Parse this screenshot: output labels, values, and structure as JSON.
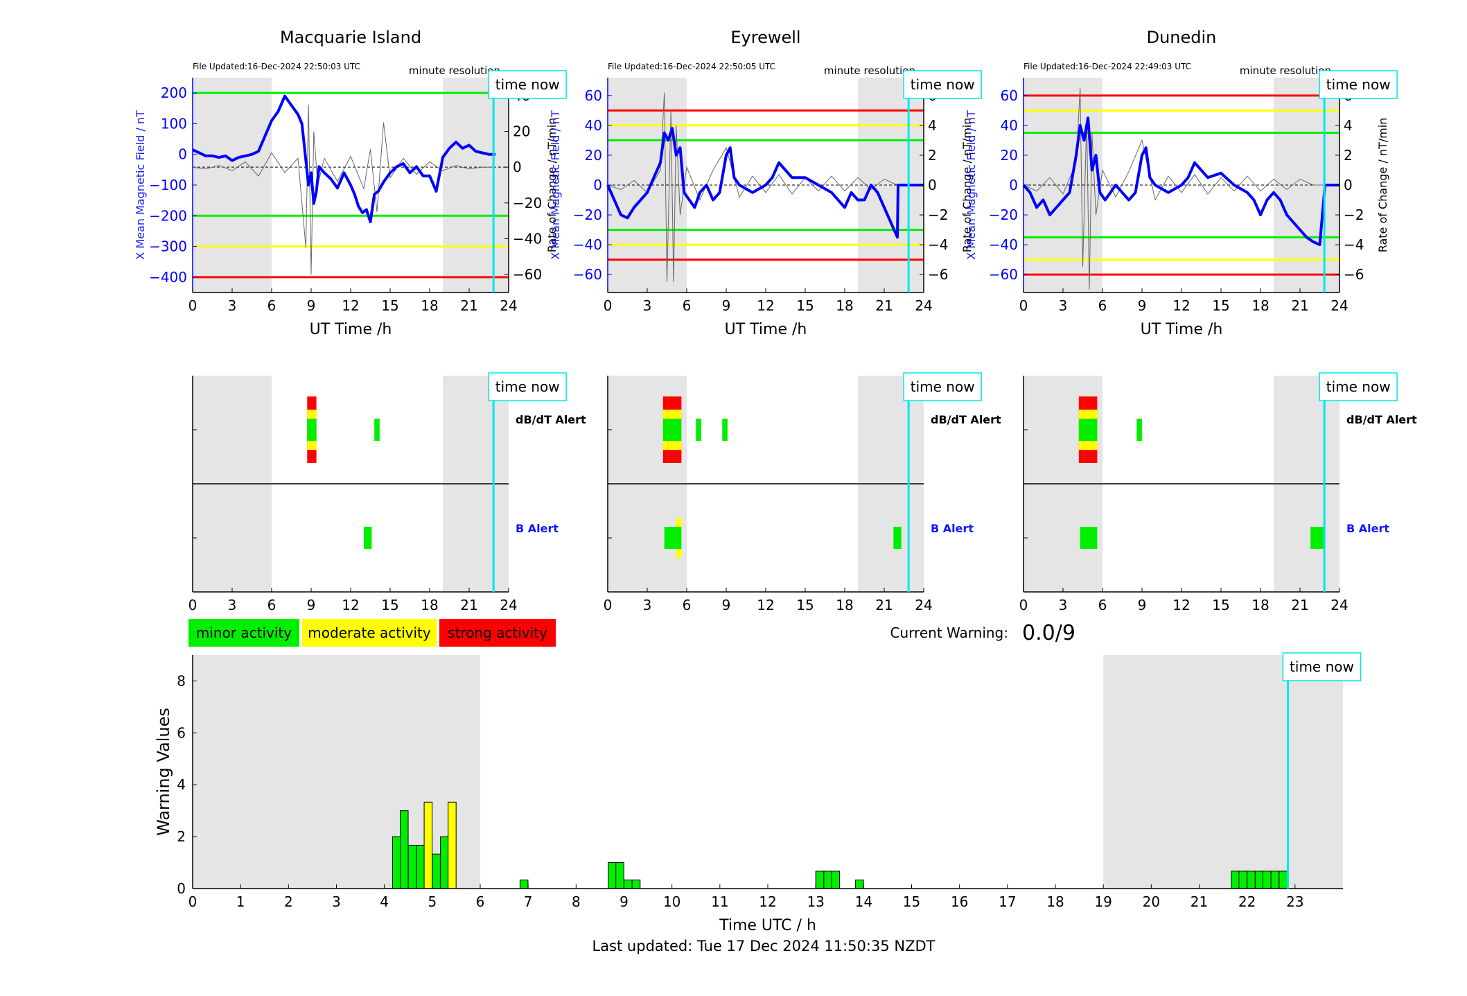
{
  "footer": {
    "last_updated": "Last updated: Tue 17 Dec 2024 11:50:35 NZDT"
  },
  "colors": {
    "minor": "#00ee00",
    "moderate": "#ffff00",
    "strong": "#ff0000",
    "field": "#0000ff",
    "time_now": "#00e5ee",
    "night": "#e5e5e5",
    "label_blue": "#1515ff"
  },
  "legend": [
    {
      "key": "minor",
      "label": "minor activity"
    },
    {
      "key": "moderate",
      "label": "moderate activity"
    },
    {
      "key": "strong",
      "label": "strong activity"
    }
  ],
  "current_warning": {
    "label": "Current Warning:",
    "value": "0.0/9"
  },
  "time_now_label": "time now",
  "time_now_hour": 22.85,
  "chart_data": [
    {
      "type": "line",
      "title": "Macquarie Island",
      "file_updated": "File Updated:16-Dec-2024 22:50:03 UTC",
      "resolution": "minute resolution",
      "xlabel": "UT Time /h",
      "ylabel_left": "X Mean Magnetic Field / nT",
      "ylabel_right": "Rate of Change / nT/min",
      "xlim": [
        0,
        24
      ],
      "xticks": [
        0,
        3,
        6,
        9,
        12,
        15,
        18,
        21,
        24
      ],
      "ylim_left": [
        -450,
        250
      ],
      "yticks_left": [
        -400,
        -300,
        -200,
        -100,
        0,
        100,
        200
      ],
      "ylim_right": [
        -70,
        50
      ],
      "yticks_right": [
        -60,
        -40,
        -20,
        0,
        20,
        40
      ],
      "night_shading": [
        [
          0,
          6
        ],
        [
          19,
          24
        ]
      ],
      "thresholds": [
        {
          "value": 200,
          "color": "minor"
        },
        {
          "value": -200,
          "color": "minor"
        },
        {
          "value": -300,
          "color": "moderate"
        },
        {
          "value": -400,
          "color": "strong"
        }
      ],
      "field_series": {
        "x": [
          0,
          0.5,
          1,
          1.5,
          2,
          2.5,
          3,
          3.5,
          4,
          4.5,
          5,
          5.5,
          6,
          6.5,
          7,
          7.5,
          8,
          8.3,
          8.6,
          8.8,
          9,
          9.2,
          9.4,
          9.6,
          10,
          10.5,
          11,
          11.5,
          12,
          12.3,
          12.6,
          12.9,
          13.2,
          13.5,
          13.8,
          14.1,
          14.5,
          15,
          15.5,
          16,
          16.5,
          17,
          17.5,
          18,
          18.5,
          19,
          19.5,
          20,
          20.5,
          21,
          21.5,
          22,
          22.5,
          23
        ],
        "y": [
          15,
          5,
          -5,
          -5,
          -10,
          -5,
          -20,
          -10,
          -5,
          0,
          10,
          60,
          110,
          140,
          190,
          160,
          130,
          100,
          -20,
          -100,
          -60,
          -160,
          -120,
          -40,
          -60,
          -80,
          -110,
          -60,
          -100,
          -130,
          -170,
          -190,
          -180,
          -220,
          -130,
          -120,
          -90,
          -60,
          -40,
          -30,
          -60,
          -40,
          -70,
          -70,
          -120,
          -10,
          20,
          40,
          20,
          30,
          10,
          5,
          0,
          0
        ]
      },
      "rate_series": {
        "x": [
          0,
          1,
          2,
          3,
          4,
          5,
          6,
          7,
          8,
          8.6,
          8.8,
          9,
          9.2,
          9.5,
          10,
          11,
          12,
          13,
          13.5,
          14,
          14.5,
          15,
          16,
          17,
          18,
          19,
          20,
          21,
          22,
          23
        ],
        "y": [
          0,
          -1,
          1,
          -2,
          3,
          -5,
          8,
          -3,
          5,
          -45,
          35,
          -60,
          20,
          -10,
          5,
          -8,
          6,
          -12,
          10,
          -25,
          25,
          -6,
          5,
          -4,
          3,
          -2,
          1,
          -1,
          0,
          0
        ]
      }
    },
    {
      "type": "line",
      "title": "Eyrewell",
      "file_updated": "File Updated:16-Dec-2024 22:50:05 UTC",
      "resolution": "minute resolution",
      "xlabel": "UT Time /h",
      "ylabel_left": "X Mean Magnetic Field / nT",
      "ylabel_right": "Rate of Change / nT/min",
      "xlim": [
        0,
        24
      ],
      "xticks": [
        0,
        3,
        6,
        9,
        12,
        15,
        18,
        21,
        24
      ],
      "ylim_left": [
        -72,
        72
      ],
      "yticks_left": [
        -60,
        -40,
        -20,
        0,
        20,
        40,
        60
      ],
      "ylim_right": [
        -7.2,
        7.2
      ],
      "yticks_right": [
        -6,
        -4,
        -2,
        0,
        2,
        4,
        6
      ],
      "night_shading": [
        [
          0,
          6
        ],
        [
          19,
          24
        ]
      ],
      "thresholds": [
        {
          "value": 50,
          "color": "strong"
        },
        {
          "value": 40,
          "color": "moderate"
        },
        {
          "value": 30,
          "color": "minor"
        },
        {
          "value": -30,
          "color": "minor"
        },
        {
          "value": -40,
          "color": "moderate"
        },
        {
          "value": -50,
          "color": "strong"
        }
      ],
      "field_series": {
        "x": [
          0,
          0.5,
          1,
          1.5,
          2,
          2.5,
          3,
          3.5,
          4,
          4.3,
          4.6,
          4.9,
          5.2,
          5.5,
          5.8,
          6.2,
          6.6,
          7,
          7.5,
          8,
          8.5,
          9,
          9.3,
          9.6,
          10,
          11,
          12,
          12.5,
          13,
          13.5,
          14,
          15,
          16,
          17,
          17.5,
          18,
          18.5,
          19,
          19.5,
          20,
          20.5,
          21,
          21.5,
          22,
          22.05,
          22.5,
          23,
          24
        ],
        "y": [
          0,
          -10,
          -20,
          -22,
          -15,
          -10,
          -5,
          5,
          15,
          35,
          30,
          38,
          20,
          25,
          -5,
          -10,
          -15,
          -5,
          0,
          -10,
          -5,
          20,
          25,
          5,
          0,
          -5,
          0,
          5,
          15,
          10,
          5,
          5,
          0,
          -5,
          -10,
          -15,
          -5,
          -10,
          -10,
          0,
          -5,
          -15,
          -25,
          -35,
          0,
          0,
          0,
          0
        ]
      },
      "rate_series": {
        "x": [
          0,
          1,
          2,
          3,
          4,
          4.3,
          4.5,
          4.8,
          5,
          5.2,
          5.5,
          6,
          7,
          8,
          9,
          10,
          11,
          12,
          13,
          14,
          15,
          16,
          17,
          18,
          19,
          20,
          21,
          22,
          23
        ],
        "y": [
          0,
          -0.3,
          0.3,
          -0.5,
          1,
          6.2,
          -6.5,
          5,
          -6.5,
          4,
          -2,
          1.2,
          -1,
          1,
          2.5,
          -0.8,
          0.6,
          -0.5,
          0.7,
          -0.6,
          0.5,
          -0.4,
          0.6,
          -0.4,
          0.5,
          -0.3,
          0.4,
          0,
          0
        ]
      }
    },
    {
      "type": "line",
      "title": "Dunedin",
      "file_updated": "File Updated:16-Dec-2024 22:49:03 UTC",
      "resolution": "minute resolution",
      "xlabel": "UT Time /h",
      "ylabel_left": "X Mean Magnetic Field / nT",
      "ylabel_right": "Rate of Change / nT/min",
      "xlim": [
        0,
        24
      ],
      "xticks": [
        0,
        3,
        6,
        9,
        12,
        15,
        18,
        21,
        24
      ],
      "ylim_left": [
        -72,
        72
      ],
      "yticks_left": [
        -60,
        -40,
        -20,
        0,
        20,
        40,
        60
      ],
      "ylim_right": [
        -7.2,
        7.2
      ],
      "yticks_right": [
        -6,
        -4,
        -2,
        0,
        2,
        4,
        6
      ],
      "night_shading": [
        [
          0,
          6
        ],
        [
          19,
          24
        ]
      ],
      "thresholds": [
        {
          "value": 60,
          "color": "strong"
        },
        {
          "value": 50,
          "color": "moderate"
        },
        {
          "value": 35,
          "color": "minor"
        },
        {
          "value": -35,
          "color": "minor"
        },
        {
          "value": -50,
          "color": "moderate"
        },
        {
          "value": -60,
          "color": "strong"
        }
      ],
      "field_series": {
        "x": [
          0,
          0.5,
          1,
          1.5,
          2,
          2.5,
          3,
          3.5,
          4,
          4.3,
          4.6,
          4.9,
          5.2,
          5.5,
          5.8,
          6.2,
          6.6,
          7,
          7.5,
          8,
          8.5,
          9,
          9.3,
          9.6,
          10,
          11,
          12,
          12.5,
          13,
          13.5,
          14,
          15,
          16,
          17,
          17.5,
          18,
          18.5,
          19,
          19.5,
          20,
          20.5,
          21,
          21.5,
          22,
          22.5,
          22.9,
          23,
          24
        ],
        "y": [
          0,
          -5,
          -15,
          -10,
          -20,
          -15,
          -10,
          -5,
          20,
          40,
          30,
          45,
          10,
          20,
          -5,
          -10,
          -5,
          0,
          -5,
          -10,
          -5,
          20,
          25,
          5,
          0,
          -5,
          0,
          5,
          15,
          10,
          5,
          8,
          0,
          -5,
          -10,
          -20,
          -10,
          -5,
          -10,
          -20,
          -25,
          -30,
          -35,
          -38,
          -40,
          0,
          0,
          0
        ]
      },
      "rate_series": {
        "x": [
          0,
          1,
          2,
          3,
          4,
          4.3,
          4.5,
          4.8,
          5,
          5.2,
          5.5,
          6,
          7,
          8,
          9,
          10,
          11,
          12,
          13,
          14,
          15,
          16,
          17,
          18,
          19,
          20,
          21,
          22,
          23
        ],
        "y": [
          0,
          -0.4,
          0.5,
          -0.6,
          1.5,
          6.5,
          -5.5,
          4.5,
          -7,
          3.5,
          -2,
          1,
          -0.8,
          0.9,
          3,
          -1,
          0.6,
          -0.5,
          0.7,
          -0.6,
          0.5,
          -0.4,
          0.6,
          -0.4,
          0.4,
          -0.3,
          0.4,
          0,
          0
        ]
      }
    },
    {
      "type": "bar",
      "title": "",
      "xlabel": "Time UTC / h",
      "ylabel": "Warning Values",
      "xlim": [
        0,
        24
      ],
      "xticks": [
        0,
        1,
        2,
        3,
        4,
        5,
        6,
        7,
        8,
        9,
        10,
        11,
        12,
        13,
        14,
        15,
        16,
        17,
        18,
        19,
        20,
        21,
        22,
        23
      ],
      "ylim": [
        0,
        9
      ],
      "yticks": [
        0,
        2,
        4,
        6,
        8
      ],
      "night_shading": [
        [
          0,
          6
        ],
        [
          19,
          24
        ]
      ],
      "bar_width": 0.1667,
      "bars": [
        {
          "x": 4.17,
          "value": 2.0,
          "level": "minor"
        },
        {
          "x": 4.33,
          "value": 3.0,
          "level": "minor"
        },
        {
          "x": 4.5,
          "value": 1.67,
          "level": "minor"
        },
        {
          "x": 4.67,
          "value": 1.67,
          "level": "minor"
        },
        {
          "x": 4.83,
          "value": 3.33,
          "level": "moderate"
        },
        {
          "x": 5.0,
          "value": 1.33,
          "level": "minor"
        },
        {
          "x": 5.17,
          "value": 2.0,
          "level": "minor"
        },
        {
          "x": 5.33,
          "value": 3.33,
          "level": "moderate"
        },
        {
          "x": 6.83,
          "value": 0.33,
          "level": "minor"
        },
        {
          "x": 8.67,
          "value": 1.0,
          "level": "minor"
        },
        {
          "x": 8.83,
          "value": 1.0,
          "level": "minor"
        },
        {
          "x": 9.0,
          "value": 0.33,
          "level": "minor"
        },
        {
          "x": 9.17,
          "value": 0.33,
          "level": "minor"
        },
        {
          "x": 13.0,
          "value": 0.67,
          "level": "minor"
        },
        {
          "x": 13.17,
          "value": 0.67,
          "level": "minor"
        },
        {
          "x": 13.33,
          "value": 0.67,
          "level": "minor"
        },
        {
          "x": 13.83,
          "value": 0.33,
          "level": "minor"
        },
        {
          "x": 21.67,
          "value": 0.67,
          "level": "minor"
        },
        {
          "x": 21.83,
          "value": 0.67,
          "level": "minor"
        },
        {
          "x": 22.0,
          "value": 0.67,
          "level": "minor"
        },
        {
          "x": 22.17,
          "value": 0.67,
          "level": "minor"
        },
        {
          "x": 22.33,
          "value": 0.67,
          "level": "minor"
        },
        {
          "x": 22.5,
          "value": 0.67,
          "level": "minor"
        },
        {
          "x": 22.67,
          "value": 0.67,
          "level": "minor"
        }
      ]
    }
  ],
  "alerts": [
    {
      "station": "Macquarie Island",
      "xticks": [
        0,
        3,
        6,
        9,
        12,
        15,
        18,
        21,
        24
      ],
      "dbdt_label": "dB/dT Alert",
      "b_label": "B Alert",
      "dbdt": [
        {
          "start": 8.7,
          "end": 9.4,
          "levels": [
            "minor",
            "moderate",
            "strong"
          ]
        },
        {
          "start": 13.8,
          "end": 14.2,
          "levels": [
            "minor"
          ]
        }
      ],
      "b": [
        {
          "start": 13.0,
          "end": 13.6,
          "levels": [
            "minor"
          ]
        }
      ]
    },
    {
      "station": "Eyrewell",
      "xticks": [
        0,
        3,
        6,
        9,
        12,
        15,
        18,
        21,
        24
      ],
      "dbdt_label": "dB/dT Alert",
      "b_label": "B Alert",
      "dbdt": [
        {
          "start": 4.2,
          "end": 4.6,
          "levels": [
            "minor",
            "moderate",
            "strong"
          ]
        },
        {
          "start": 4.6,
          "end": 5.0,
          "levels": [
            "minor",
            "moderate",
            "strong"
          ]
        },
        {
          "start": 5.0,
          "end": 5.6,
          "levels": [
            "minor",
            "moderate",
            "strong"
          ]
        },
        {
          "start": 6.7,
          "end": 7.1,
          "levels": [
            "minor"
          ]
        },
        {
          "start": 8.7,
          "end": 9.1,
          "levels": [
            "minor"
          ]
        }
      ],
      "b": [
        {
          "start": 4.3,
          "end": 5.2,
          "levels": [
            "minor"
          ]
        },
        {
          "start": 5.2,
          "end": 5.6,
          "levels": [
            "minor",
            "moderate"
          ]
        },
        {
          "start": 21.7,
          "end": 22.3,
          "levels": [
            "minor"
          ]
        }
      ]
    },
    {
      "station": "Dunedin",
      "xticks": [
        0,
        3,
        6,
        9,
        12,
        15,
        18,
        21,
        24
      ],
      "dbdt_label": "dB/dT Alert",
      "b_label": "B Alert",
      "dbdt": [
        {
          "start": 4.2,
          "end": 4.6,
          "levels": [
            "minor",
            "moderate",
            "strong"
          ]
        },
        {
          "start": 4.6,
          "end": 5.0,
          "levels": [
            "minor",
            "moderate",
            "strong"
          ]
        },
        {
          "start": 5.0,
          "end": 5.6,
          "levels": [
            "minor",
            "moderate",
            "strong"
          ]
        },
        {
          "start": 8.6,
          "end": 9.0,
          "levels": [
            "minor"
          ]
        }
      ],
      "b": [
        {
          "start": 4.3,
          "end": 5.6,
          "levels": [
            "minor"
          ]
        },
        {
          "start": 21.8,
          "end": 22.9,
          "levels": [
            "minor"
          ]
        }
      ]
    }
  ]
}
